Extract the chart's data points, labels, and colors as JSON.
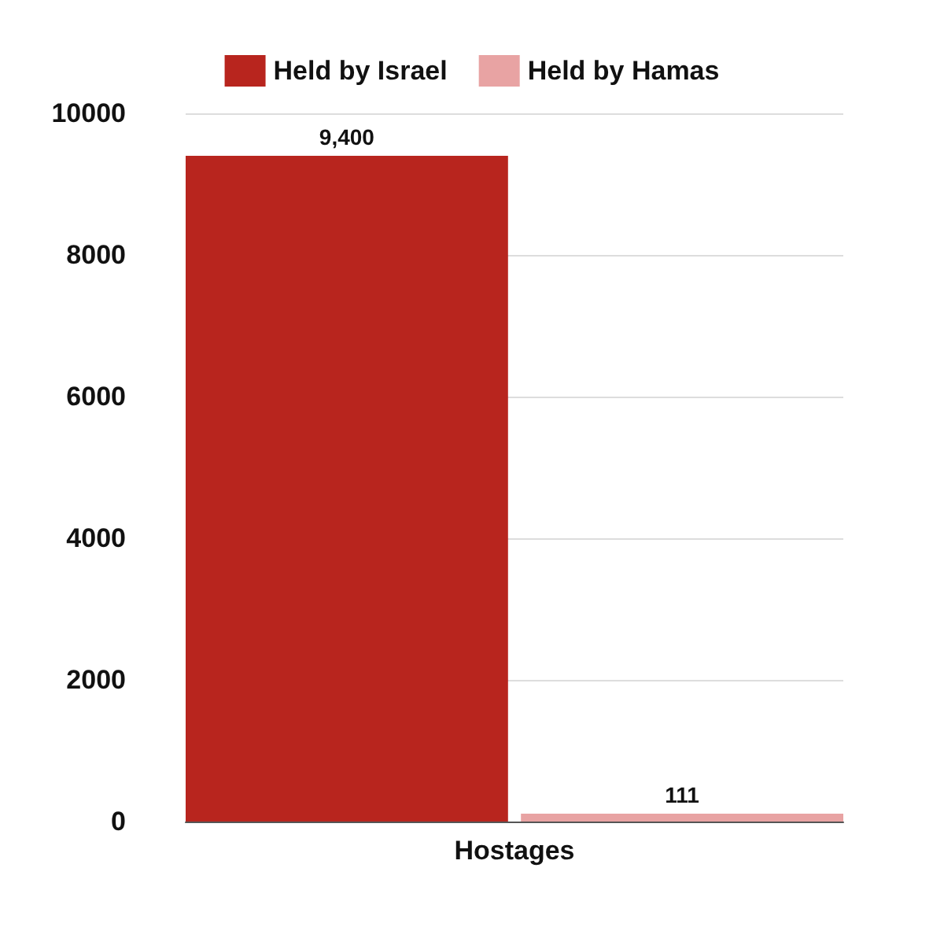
{
  "chart_data": {
    "type": "bar",
    "categories": [
      "Hostages"
    ],
    "series": [
      {
        "name": "Held by Israel",
        "color": "#b8251e",
        "values": [
          9400
        ]
      },
      {
        "name": "Held by Hamas",
        "color": "#e8a3a3",
        "values": [
          111
        ]
      }
    ],
    "value_labels": [
      [
        "9,400"
      ],
      [
        "111"
      ]
    ],
    "ylim": [
      0,
      10000
    ],
    "yticks": [
      0,
      2000,
      4000,
      6000,
      8000,
      10000
    ],
    "grid": "y",
    "legend": "top"
  }
}
